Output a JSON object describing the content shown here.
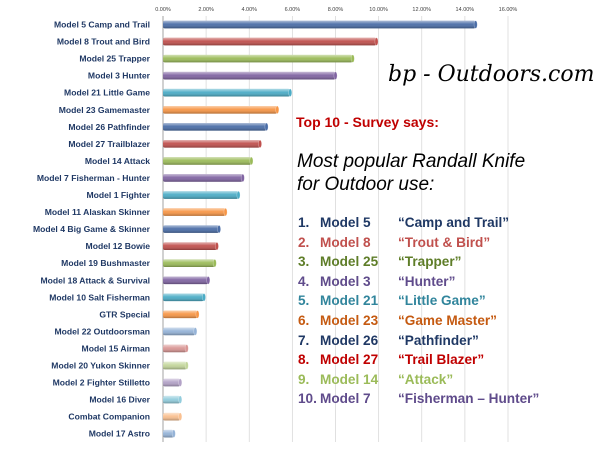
{
  "chart_data": {
    "type": "bar",
    "orientation": "horizontal",
    "categories": [
      "Model 5 Camp and Trail",
      "Model 8 Trout and Bird",
      "Model 25 Trapper",
      "Model 3 Hunter",
      "Model 21 Little Game",
      "Model 23 Gamemaster",
      "Model 26 Pathfinder",
      "Model 27 Trailblazer",
      "Model 14 Attack",
      "Model 7 Fisherman - Hunter",
      "Model 1 Fighter",
      "Model 11 Alaskan Skinner",
      "Model 4 Big Game & Skinner",
      "Model 12 Bowie",
      "Model 19 Bushmaster",
      "Model 18 Attack & Survival",
      "Model 10 Salt Fisherman",
      "GTR Special",
      "Model 22 Outdoorsman",
      "Model 15 Airman",
      "Model 20 Yukon Skinner",
      "Model 2 Fighter Stilletto",
      "Model 16 Diver",
      "Combat Companion",
      "Model 17 Astro"
    ],
    "values": [
      14.5,
      9.9,
      8.8,
      8.0,
      5.9,
      5.3,
      4.8,
      4.5,
      4.1,
      3.7,
      3.5,
      2.9,
      2.6,
      2.5,
      2.4,
      2.1,
      1.9,
      1.6,
      1.5,
      1.1,
      1.1,
      0.8,
      0.8,
      0.8,
      0.5
    ],
    "bar_colors": [
      "#4a6da7",
      "#c0504d",
      "#9bbb59",
      "#8064a2",
      "#4bacc6",
      "#f79646",
      "#4a6da7",
      "#c0504d",
      "#9bbb59",
      "#8064a2",
      "#4bacc6",
      "#f79646",
      "#4a6da7",
      "#c0504d",
      "#9bbb59",
      "#8064a2",
      "#4bacc6",
      "#f79646",
      "#95b3d7",
      "#d99694",
      "#c3d69b",
      "#b3a2c7",
      "#93cddd",
      "#fac090",
      "#95b3d7"
    ],
    "xlim": [
      0,
      16
    ],
    "x_ticks": [
      "0.00%",
      "2.00%",
      "4.00%",
      "6.00%",
      "8.00%",
      "10.00%",
      "12.00%",
      "14.00%",
      "16.00%"
    ],
    "grid": true,
    "title": "",
    "xlabel": "",
    "ylabel": ""
  },
  "watermark": "bp - Outdoors.com",
  "top10_heading": "Top 10 - Survey says:",
  "headline": [
    "Most popular Randall Knife",
    "for Outdoor use:"
  ],
  "ranking": [
    {
      "num": "1.",
      "model": "Model 5",
      "nick": "“Camp and Trail”",
      "color": "#1f3864"
    },
    {
      "num": "2.",
      "model": "Model 8",
      "nick": "“Trout & Bird”",
      "color": "#c0504d"
    },
    {
      "num": "3.",
      "model": "Model 25",
      "nick": "“Trapper”",
      "color": "#5e7d28"
    },
    {
      "num": "4.",
      "model": "Model 3",
      "nick": "“Hunter”",
      "color": "#5f4b8b"
    },
    {
      "num": "5.",
      "model": "Model 21",
      "nick": "“Little Game”",
      "color": "#31859c"
    },
    {
      "num": "6.",
      "model": "Model 23",
      "nick": "“Game Master”",
      "color": "#c55a11"
    },
    {
      "num": "7.",
      "model": "Model 26",
      "nick": "“Pathfinder”",
      "color": "#1f3864"
    },
    {
      "num": "8.",
      "model": "Model 27",
      "nick": "“Trail Blazer”",
      "color": "#c00000"
    },
    {
      "num": "9.",
      "model": "Model 14",
      "nick": "“Attack”",
      "color": "#9bbb59"
    },
    {
      "num": "10.",
      "model": "Model 7",
      "nick": "“Fisherman – Hunter”",
      "color": "#5f4b8b"
    }
  ]
}
